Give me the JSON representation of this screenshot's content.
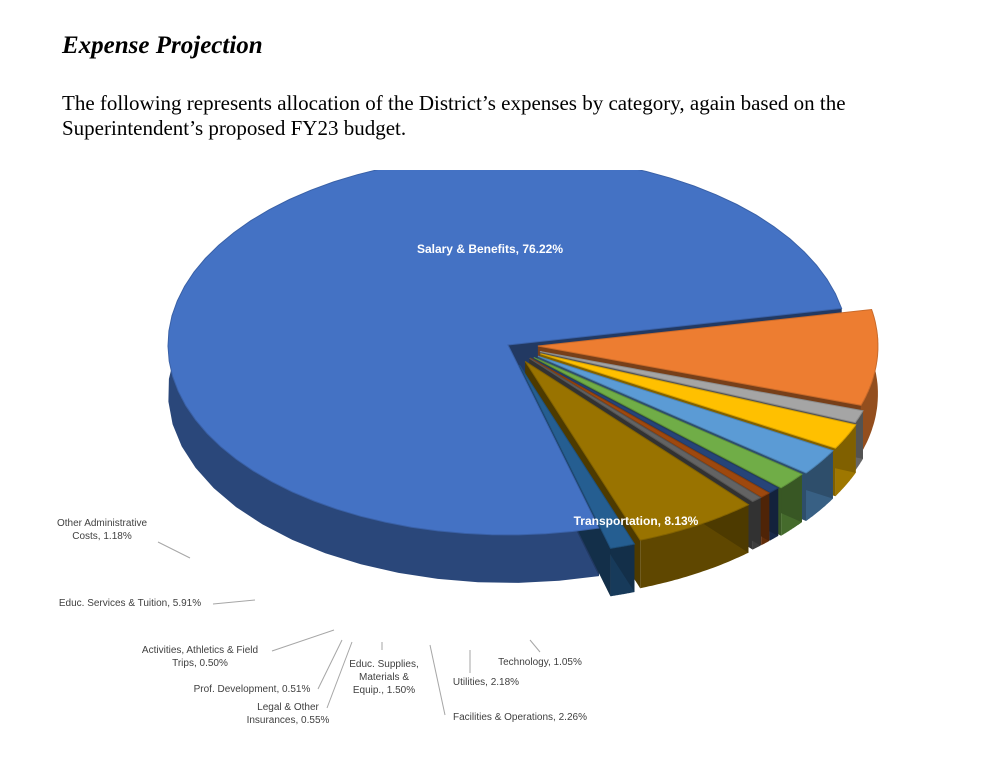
{
  "heading": "Expense Projection",
  "intro": "The following represents allocation of the District’s expenses by category, again based on the Superintendent’s proposed FY23 budget.",
  "chart_data": {
    "type": "pie",
    "slices": [
      {
        "label": [
          "Salary & Benefits, 76.22%"
        ],
        "value": 76.22,
        "color": "#4472C4"
      },
      {
        "label": [
          "Transportation, 8.13%"
        ],
        "value": 8.13,
        "color": "#ED7D31"
      },
      {
        "label": [
          "Technology, 1.05%"
        ],
        "value": 1.05,
        "color": "#A5A5A5"
      },
      {
        "label": [
          "Utilities, 2.18%"
        ],
        "value": 2.18,
        "color": "#FFC000"
      },
      {
        "label": [
          "Facilities & Operations, 2.26%"
        ],
        "value": 2.26,
        "color": "#5B9BD5"
      },
      {
        "label": [
          "Educ. Supplies,",
          "Materials &",
          "Equip., 1.50%"
        ],
        "value": 1.5,
        "color": "#70AD47"
      },
      {
        "label": [
          "Legal & Other",
          "Insurances, 0.55%"
        ],
        "value": 0.55,
        "color": "#264478"
      },
      {
        "label": [
          "Prof. Development, 0.51%"
        ],
        "value": 0.51,
        "color": "#9E480E"
      },
      {
        "label": [
          "Activities, Athletics & Field",
          "Trips, 0.50%"
        ],
        "value": 0.5,
        "color": "#636363"
      },
      {
        "label": [
          "Educ. Services & Tuition, 5.91%"
        ],
        "value": 5.91,
        "color": "#997300"
      },
      {
        "label": [
          "Other Administrative",
          "Costs, 1.18%"
        ],
        "value": 1.18,
        "color": "#255E91"
      }
    ]
  }
}
